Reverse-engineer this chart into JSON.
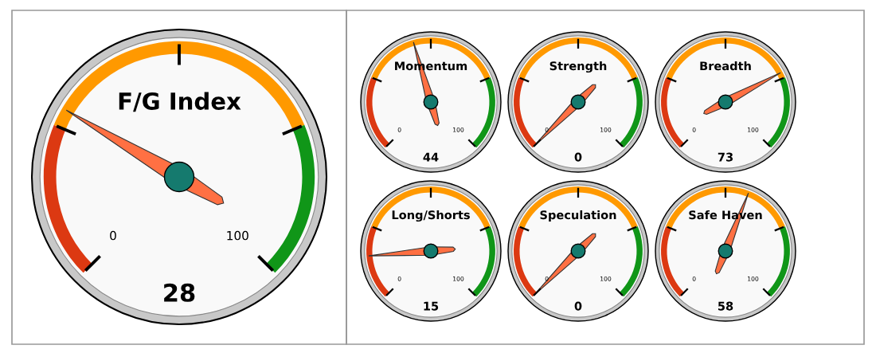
{
  "chart_data": [
    {
      "type": "other",
      "title": "F/G Index",
      "values": [
        28
      ],
      "data_labels": true,
      "annotations": [
        "0",
        "100"
      ]
    },
    {
      "type": "other",
      "title": "Momentum",
      "values": [
        44
      ],
      "data_labels": true,
      "annotations": [
        "0",
        "100"
      ]
    },
    {
      "type": "other",
      "title": "Strength",
      "values": [
        0
      ],
      "data_labels": true,
      "annotations": [
        "0",
        "100"
      ]
    },
    {
      "type": "other",
      "title": "Breadth",
      "values": [
        73
      ],
      "data_labels": true,
      "annotations": [
        "0",
        "100"
      ]
    },
    {
      "type": "other",
      "title": "Long/Shorts",
      "values": [
        15
      ],
      "data_labels": true,
      "annotations": [
        "0",
        "100"
      ]
    },
    {
      "type": "other",
      "title": "Speculation",
      "values": [
        0
      ],
      "data_labels": true,
      "annotations": [
        "0",
        "100"
      ]
    },
    {
      "type": "other",
      "title": "Safe Haven",
      "values": [
        58
      ],
      "data_labels": true,
      "annotations": [
        "0",
        "100"
      ]
    }
  ]
}
